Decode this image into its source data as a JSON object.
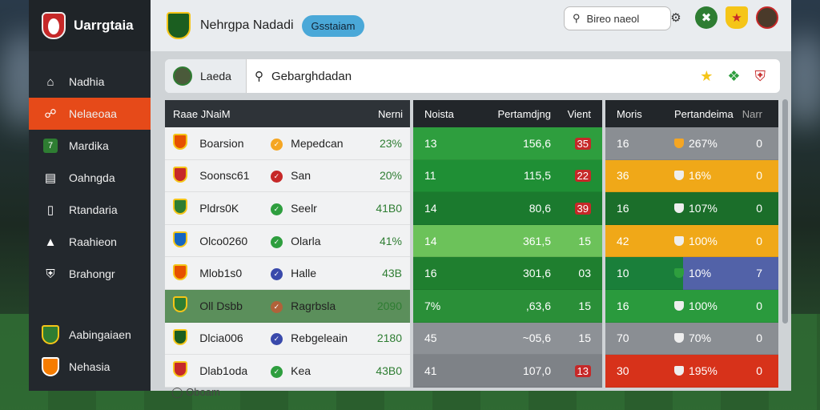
{
  "brand": {
    "name": "Uarrgtaia"
  },
  "header": {
    "title": "Nehrgpa Nadadi",
    "pill": "Gsstaiam",
    "search_text": "Bireo naeol"
  },
  "sidebar": {
    "items": [
      {
        "label": "Nadhia",
        "icon": "home-icon"
      },
      {
        "label": "Nelaeoaa",
        "icon": "link-icon",
        "active": true
      },
      {
        "label": "Mardika",
        "icon": "box-icon"
      },
      {
        "label": "Oahngda",
        "icon": "chat-icon"
      },
      {
        "label": "Rtandaria",
        "icon": "document-icon"
      },
      {
        "label": "Raahieon",
        "icon": "tag-icon"
      },
      {
        "label": "Brahongr",
        "icon": "shield-icon"
      }
    ],
    "teams": [
      {
        "label": "Aabingaiaen",
        "color": "#2e7d32"
      },
      {
        "label": "Nehasia",
        "color": "#f57c00"
      }
    ]
  },
  "search": {
    "label": "Laeda",
    "value": "Gebarghdadan"
  },
  "table1": {
    "headers": [
      "Raae JNaiM",
      "Nerni"
    ],
    "rows": [
      {
        "name": "Boarsion",
        "opp": "Mepedcan",
        "pct": "23%",
        "dot": "#f5a623",
        "crest": "#e65100"
      },
      {
        "name": "Soonsc61",
        "opp": "San",
        "pct": "20%",
        "dot": "#c62828",
        "crest": "#c62828"
      },
      {
        "name": "Pldrs0K",
        "opp": "Seelr",
        "pct": "41B0",
        "dot": "#2e9e3e",
        "crest": "#2e7d32"
      },
      {
        "name": "Olco0260",
        "opp": "Olarla",
        "pct": "41%",
        "dot": "#2e9e3e",
        "crest": "#1565c0"
      },
      {
        "name": "Mlob1s0",
        "opp": "Halle",
        "pct": "43B",
        "dot": "#3949ab",
        "crest": "#e65100"
      },
      {
        "name": "Oll Dsbb",
        "opp": "Ragrbsla",
        "pct": "2090",
        "dot": "#b0623a",
        "crest": "#2e7d32",
        "highlight": true
      },
      {
        "name": "Dlcia006",
        "opp": "Rebgeleain",
        "pct": "2180",
        "dot": "#3949ab",
        "crest": "#1b5e20"
      },
      {
        "name": "Dlab1oda",
        "opp": "Kea",
        "pct": "43B0",
        "dot": "#2e9e3e",
        "crest": "#c62828"
      }
    ]
  },
  "table2": {
    "headers": [
      "Noista",
      "Pertamdjng",
      "Vient"
    ],
    "rows": [
      {
        "a": "13",
        "b": "156,6",
        "c": "35",
        "badge": true,
        "color": "#2e9e3e"
      },
      {
        "a": "11",
        "b": "115,5",
        "c": "22",
        "badge": true,
        "color": "#1f8f35"
      },
      {
        "a": "14",
        "b": "80,6",
        "c": "39",
        "badge": true,
        "color": "#1b7a2e"
      },
      {
        "a": "14",
        "b": "361,5",
        "c": "15",
        "badge": false,
        "color": "#6cc25a"
      },
      {
        "a": "16",
        "b": "301,6",
        "c": "03",
        "badge": false,
        "color": "#1f7f2f"
      },
      {
        "a": "7%",
        "b": ",63,6",
        "c": "15",
        "badge": false,
        "color": "#2a8f38"
      },
      {
        "a": "45",
        "b": "~05,6",
        "c": "15",
        "badge": false,
        "color": "#8d9196"
      },
      {
        "a": "41",
        "b": "107,0",
        "c": "13",
        "badge": true,
        "color": "#7e8287"
      }
    ]
  },
  "table3": {
    "headers": [
      "Moris",
      "Pertandeima",
      "Narr"
    ],
    "rows": [
      {
        "a": "16",
        "b": "267%",
        "c": "0",
        "color": "#8a8e93",
        "mark": "#f5a623"
      },
      {
        "a": "36",
        "b": "16%",
        "c": "0",
        "color": "#f0a818",
        "mark": "#eee"
      },
      {
        "a": "16",
        "b": "107%",
        "c": "0",
        "color": "#1b6e2a",
        "mark": "#eee"
      },
      {
        "a": "42",
        "b": "100%",
        "c": "0",
        "color": "#f0a818",
        "mark": "#eee"
      },
      {
        "a": "10",
        "b": "10%",
        "c": "7",
        "color": "#5262a8",
        "mark": "#2e9e3e",
        "split": "#1a7f3a"
      },
      {
        "a": "16",
        "b": "100%",
        "c": "0",
        "color": "#2a9a3d",
        "mark": "#eee"
      },
      {
        "a": "70",
        "b": "70%",
        "c": "0",
        "color": "#8a8e93",
        "mark": "#eee"
      },
      {
        "a": "30",
        "b": "195%",
        "c": "0",
        "color": "#d7321a",
        "mark": "#eee"
      }
    ]
  },
  "footer": {
    "peek": "Oboam"
  }
}
